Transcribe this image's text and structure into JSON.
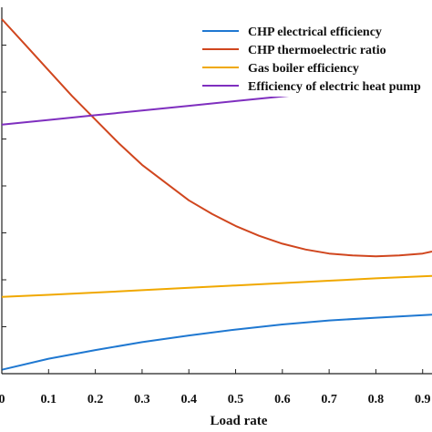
{
  "chart_data": {
    "type": "line",
    "xlabel": "Load rate",
    "ylabel": "",
    "xlim": [
      0,
      0.92
    ],
    "ylim": [
      0,
      9.3
    ],
    "grid": false,
    "legend_position": "top-right",
    "x_ticks": [
      "0",
      "0.1",
      "0.2",
      "0.3",
      "0.4",
      "0.5",
      "0.6",
      "0.7",
      "0.8",
      "0.9"
    ],
    "x_tick_values": [
      0,
      0.1,
      0.2,
      0.3,
      0.4,
      0.5,
      0.6,
      0.7,
      0.8,
      0.9
    ],
    "series": [
      {
        "name": "CHP electrical efficiency",
        "color": "#1f78d1",
        "x": [
          0,
          0.1,
          0.2,
          0.3,
          0.4,
          0.5,
          0.6,
          0.7,
          0.8,
          0.92
        ],
        "y": [
          0.1,
          0.38,
          0.6,
          0.8,
          0.97,
          1.12,
          1.25,
          1.35,
          1.42,
          1.5
        ]
      },
      {
        "name": "CHP thermoelectric ratio",
        "color": "#d0461e",
        "x": [
          0,
          0.05,
          0.1,
          0.15,
          0.2,
          0.25,
          0.3,
          0.35,
          0.4,
          0.45,
          0.5,
          0.55,
          0.6,
          0.65,
          0.7,
          0.75,
          0.8,
          0.85,
          0.9,
          0.92
        ],
        "y": [
          9.0,
          8.35,
          7.7,
          7.05,
          6.45,
          5.85,
          5.3,
          4.85,
          4.4,
          4.05,
          3.75,
          3.5,
          3.3,
          3.15,
          3.05,
          3.0,
          2.98,
          3.0,
          3.05,
          3.1
        ]
      },
      {
        "name": "Gas boiler efficiency",
        "color": "#f0a800",
        "x": [
          0,
          0.1,
          0.2,
          0.3,
          0.4,
          0.5,
          0.6,
          0.7,
          0.8,
          0.92
        ],
        "y": [
          1.95,
          2.0,
          2.06,
          2.12,
          2.18,
          2.24,
          2.3,
          2.36,
          2.42,
          2.48
        ]
      },
      {
        "name": "Efficiency of electric heat pump",
        "color": "#7f2fbf",
        "x": [
          0,
          0.1,
          0.2,
          0.3,
          0.4,
          0.5,
          0.6,
          0.7,
          0.8,
          0.92
        ],
        "y": [
          6.32,
          6.44,
          6.56,
          6.68,
          6.8,
          6.92,
          7.04,
          7.16,
          7.28,
          7.42
        ]
      }
    ]
  }
}
